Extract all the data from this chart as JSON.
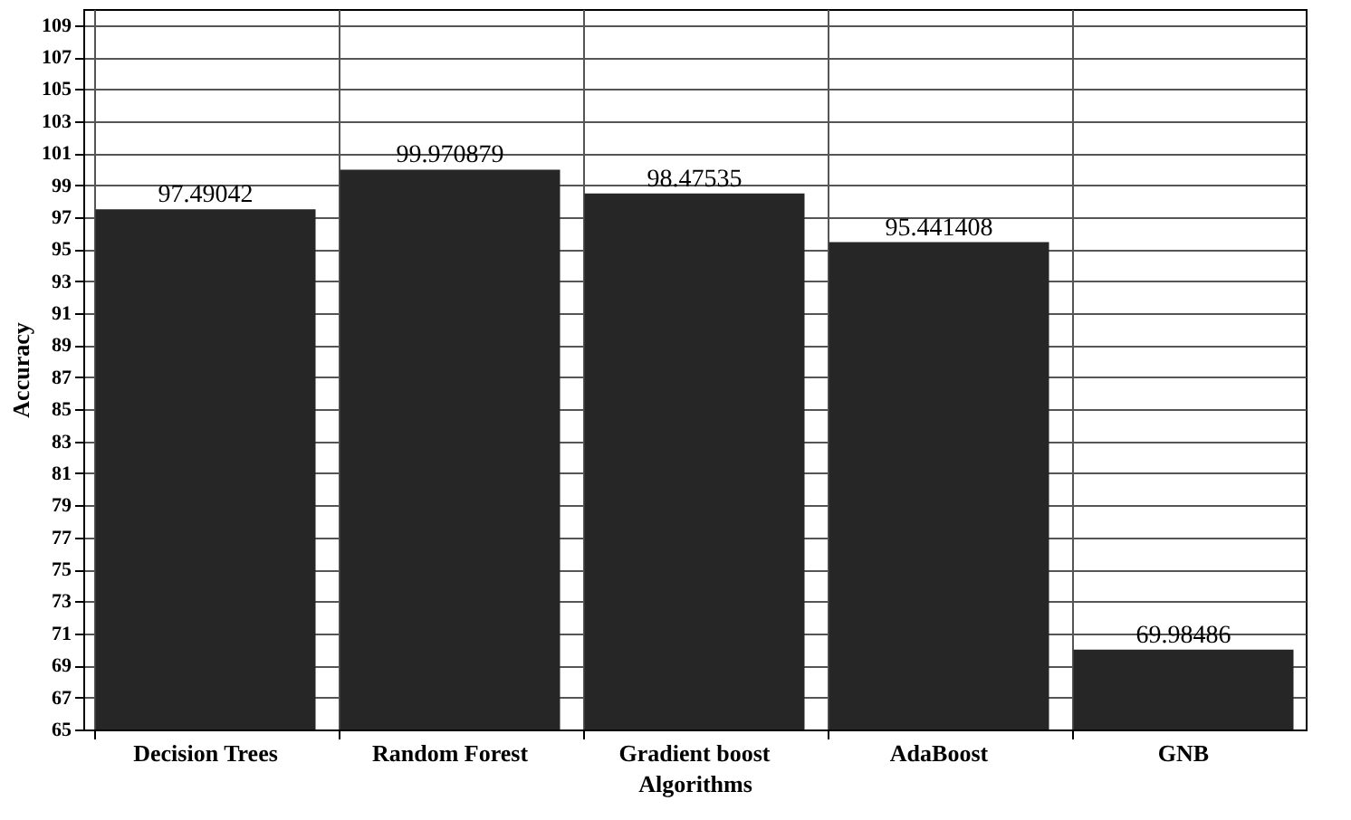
{
  "chart_data": {
    "type": "bar",
    "xlabel": "Algorithms",
    "ylabel": "Accuracy",
    "categories": [
      "Decision Trees",
      "Random Forest",
      "Gradient boost",
      "AdaBoost",
      "GNB"
    ],
    "values": [
      97.49042,
      99.970879,
      98.47535,
      95.441408,
      69.98486
    ],
    "value_labels": [
      "97.49042",
      "99.970879",
      "98.47535",
      "95.441408",
      "69.98486"
    ],
    "color": "#262626",
    "ylim": [
      65,
      110
    ],
    "yticks": [
      65,
      67,
      69,
      71,
      73,
      75,
      77,
      79,
      81,
      83,
      85,
      87,
      89,
      91,
      93,
      95,
      97,
      99,
      101,
      103,
      105,
      107,
      109
    ],
    "grid": true
  }
}
